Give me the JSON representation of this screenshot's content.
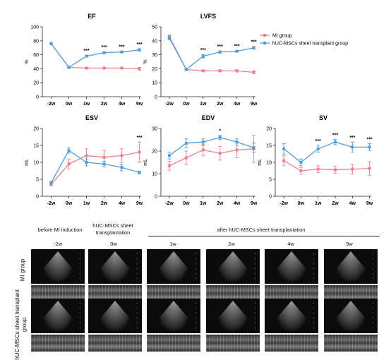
{
  "colors": {
    "mi": "#f07f8c",
    "huc": "#4f9fd8"
  },
  "legend": {
    "mi": "MI group",
    "huc": "hUC-MSCs sheet transplant group"
  },
  "chart_data": [
    {
      "type": "line",
      "title": "EF",
      "ylabel": "%",
      "ylim": [
        0,
        100
      ],
      "yticks": [
        0,
        20,
        40,
        60,
        80,
        100
      ],
      "categories": [
        "-2w",
        "0w",
        "1w",
        "2w",
        "4w",
        "9w"
      ],
      "series": [
        {
          "name": "MI group",
          "values": [
            76,
            42,
            41,
            41,
            41,
            40
          ],
          "err": [
            1.5,
            1,
            1,
            1.5,
            1.5,
            2
          ]
        },
        {
          "name": "hUC-MSCs sheet transplant group",
          "values": [
            76,
            42,
            58,
            63,
            64,
            67
          ],
          "err": [
            1.5,
            1,
            1.5,
            1.5,
            1,
            1.5
          ]
        }
      ],
      "annotations": [
        "",
        "",
        "***",
        "***",
        "***",
        "***"
      ]
    },
    {
      "type": "line",
      "title": "LVFS",
      "ylabel": "%",
      "ylim": [
        0,
        50
      ],
      "yticks": [
        0,
        10,
        20,
        30,
        40,
        50
      ],
      "categories": [
        "-2w",
        "0w",
        "1w",
        "2w",
        "4w",
        "9w"
      ],
      "series": [
        {
          "name": "MI group",
          "values": [
            43,
            19.5,
            18.5,
            18.5,
            18.5,
            17.5
          ],
          "err": [
            1.2,
            0.8,
            0.6,
            0.6,
            0.8,
            1
          ]
        },
        {
          "name": "hUC-MSCs sheet transplant group",
          "values": [
            42,
            19.5,
            29,
            32,
            32.5,
            35
          ],
          "err": [
            1.2,
            0.8,
            1.2,
            0.8,
            0.6,
            1
          ]
        }
      ],
      "annotations": [
        "",
        "",
        "***",
        "***",
        "***",
        "***"
      ]
    },
    {
      "type": "line",
      "title": "ESV",
      "ylabel": "mL",
      "ylim": [
        0,
        20
      ],
      "yticks": [
        0,
        5,
        10,
        15,
        20
      ],
      "categories": [
        "-2w",
        "0w",
        "1w",
        "2w",
        "4w",
        "9w"
      ],
      "series": [
        {
          "name": "MI group",
          "values": [
            3.5,
            9.5,
            12,
            11.5,
            12,
            13
          ],
          "err": [
            0.5,
            1.5,
            2,
            2,
            2,
            3
          ]
        },
        {
          "name": "hUC-MSCs sheet transplant group",
          "values": [
            4,
            13.5,
            10,
            9.5,
            8.5,
            7
          ],
          "err": [
            0.4,
            0.8,
            1,
            0.8,
            1,
            0.4
          ]
        }
      ],
      "annotations": [
        "",
        "",
        "",
        "",
        "",
        "***"
      ]
    },
    {
      "type": "line",
      "title": "EDV",
      "ylabel": "mL",
      "ylim": [
        0,
        30
      ],
      "yticks": [
        0,
        10,
        20,
        30
      ],
      "categories": [
        "-2w",
        "0w",
        "1w",
        "2w",
        "4w",
        "9w"
      ],
      "series": [
        {
          "name": "MI group",
          "values": [
            13.5,
            17,
            20.5,
            19,
            20.5,
            21
          ],
          "err": [
            2,
            3,
            2.5,
            3,
            3.5,
            6
          ]
        },
        {
          "name": "hUC-MSCs sheet transplant group",
          "values": [
            18,
            23.5,
            24,
            26,
            24,
            21.5
          ],
          "err": [
            1.5,
            2,
            1.5,
            1,
            1.5,
            2
          ]
        }
      ],
      "annotations": [
        "",
        "",
        "",
        "*",
        "",
        ""
      ]
    },
    {
      "type": "line",
      "title": "SV",
      "ylabel": "mL",
      "ylim": [
        0,
        20
      ],
      "yticks": [
        0,
        5,
        10,
        15,
        20
      ],
      "categories": [
        "-2w",
        "0w",
        "1w",
        "2w",
        "4w",
        "9w"
      ],
      "series": [
        {
          "name": "MI group",
          "values": [
            10.5,
            7.5,
            8,
            7.8,
            8,
            8.2
          ],
          "err": [
            1.5,
            1,
            1,
            1,
            1.5,
            2
          ]
        },
        {
          "name": "hUC-MSCs sheet transplant group",
          "values": [
            14,
            10,
            14,
            16,
            14.5,
            14.5
          ],
          "err": [
            1.5,
            1,
            1,
            0.8,
            1.5,
            1
          ]
        }
      ],
      "annotations": [
        "",
        "",
        "***",
        "***",
        "***",
        "***"
      ]
    }
  ],
  "imaging": {
    "groups": [
      "before MI induction",
      "hUC-MSCs sheet transplantation",
      "after hUC-MSCs sheet transplantation"
    ],
    "columns": [
      "-2w",
      "0w",
      "1w",
      "2w",
      "4w",
      "9w"
    ],
    "rows": [
      "MI group",
      "hUC-MSCs sheet transplant group"
    ]
  }
}
